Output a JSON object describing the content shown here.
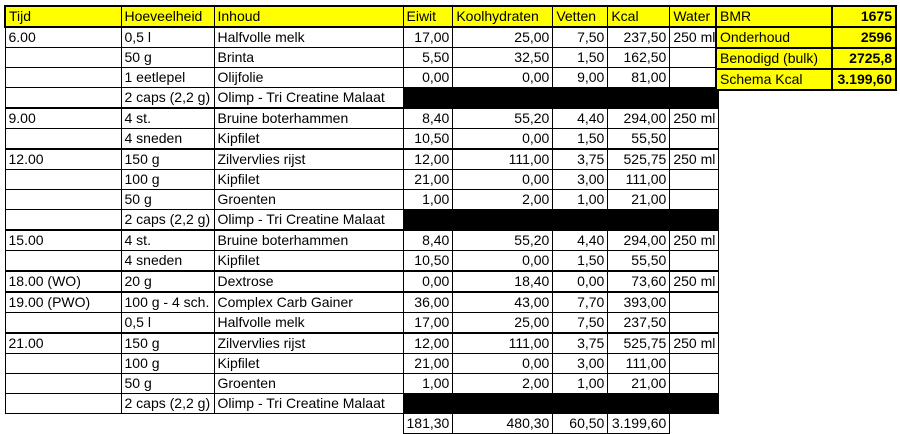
{
  "colors": {
    "header_bg": "#ffff00",
    "grid_line": "#000000",
    "redaction_bar": "#000000",
    "background": "#ffffff",
    "text": "#000000"
  },
  "table": {
    "columns": [
      "Tijd",
      "Hoeveelheid",
      "Inhoud",
      "Eiwit",
      "Koolhydraten",
      "Vetten",
      "Kcal",
      "Water"
    ],
    "rows": [
      {
        "tijd": "6.00",
        "hoeveelheid": "0,5 l",
        "inhoud": "Halfvolle melk",
        "eiwit": "17,00",
        "koolhydraten": "25,00",
        "vetten": "7,50",
        "kcal": "237,50",
        "water": "250 ml",
        "block_start": true
      },
      {
        "hoeveelheid": "50 g",
        "inhoud": "Brinta",
        "eiwit": "5,50",
        "koolhydraten": "32,50",
        "vetten": "1,50",
        "kcal": "162,50"
      },
      {
        "hoeveelheid": "1 eetlepel",
        "inhoud": "Olijfolie",
        "eiwit": "0,00",
        "koolhydraten": "0,00",
        "vetten": "9,00",
        "kcal": "81,00"
      },
      {
        "hoeveelheid": "2 caps (2,2 g)",
        "inhoud": "Olimp - Tri Creatine Malaat",
        "supplement_bar": true
      },
      {
        "tijd": "9.00",
        "hoeveelheid": "4 st.",
        "inhoud": "Bruine boterhammen",
        "eiwit": "8,40",
        "koolhydraten": "55,20",
        "vetten": "4,40",
        "kcal": "294,00",
        "water": "250 ml",
        "block_start": true
      },
      {
        "hoeveelheid": "4 sneden",
        "inhoud": "Kipfilet",
        "eiwit": "10,50",
        "koolhydraten": "0,00",
        "vetten": "1,50",
        "kcal": "55,50"
      },
      {
        "tijd": "12.00",
        "hoeveelheid": "150 g",
        "inhoud": "Zilvervlies rijst",
        "eiwit": "12,00",
        "koolhydraten": "111,00",
        "vetten": "3,75",
        "kcal": "525,75",
        "water": "250 ml",
        "block_start": true
      },
      {
        "hoeveelheid": "100 g",
        "inhoud": "Kipfilet",
        "eiwit": "21,00",
        "koolhydraten": "0,00",
        "vetten": "3,00",
        "kcal": "111,00"
      },
      {
        "hoeveelheid": "50 g",
        "inhoud": "Groenten",
        "eiwit": "1,00",
        "koolhydraten": "2,00",
        "vetten": "1,00",
        "kcal": "21,00"
      },
      {
        "hoeveelheid": "2 caps (2,2 g)",
        "inhoud": "Olimp - Tri Creatine Malaat",
        "supplement_bar": true
      },
      {
        "tijd": "15.00",
        "hoeveelheid": "4 st.",
        "inhoud": "Bruine boterhammen",
        "eiwit": "8,40",
        "koolhydraten": "55,20",
        "vetten": "4,40",
        "kcal": "294,00",
        "water": "250 ml",
        "block_start": true
      },
      {
        "hoeveelheid": "4 sneden",
        "inhoud": "Kipfilet",
        "eiwit": "10,50",
        "koolhydraten": "0,00",
        "vetten": "1,50",
        "kcal": "55,50"
      },
      {
        "tijd": "18.00 (WO)",
        "hoeveelheid": "20 g",
        "inhoud": "Dextrose",
        "eiwit": "0,00",
        "koolhydraten": "18,40",
        "vetten": "0,00",
        "kcal": "73,60",
        "water": "250 ml",
        "block_start": true
      },
      {
        "tijd": "19.00 (PWO)",
        "hoeveelheid": "100 g - 4 sch.",
        "inhoud": "Complex Carb Gainer",
        "eiwit": "36,00",
        "koolhydraten": "43,00",
        "vetten": "7,70",
        "kcal": "393,00",
        "block_start": true
      },
      {
        "hoeveelheid": "0,5 l",
        "inhoud": "Halfvolle melk",
        "eiwit": "17,00",
        "koolhydraten": "25,00",
        "vetten": "7,50",
        "kcal": "237,50"
      },
      {
        "tijd": "21.00",
        "hoeveelheid": "150 g",
        "inhoud": "Zilvervlies rijst",
        "eiwit": "12,00",
        "koolhydraten": "111,00",
        "vetten": "3,75",
        "kcal": "525,75",
        "water": "250 ml",
        "block_start": true
      },
      {
        "hoeveelheid": "100 g",
        "inhoud": "Kipfilet",
        "eiwit": "21,00",
        "koolhydraten": "0,00",
        "vetten": "3,00",
        "kcal": "111,00"
      },
      {
        "hoeveelheid": "50 g",
        "inhoud": "Groenten",
        "eiwit": "1,00",
        "koolhydraten": "2,00",
        "vetten": "1,00",
        "kcal": "21,00"
      },
      {
        "hoeveelheid": "2 caps (2,2 g)",
        "inhoud": "Olimp - Tri Creatine Malaat",
        "supplement_bar": true
      }
    ],
    "totals": {
      "eiwit": "181,30",
      "koolhydraten": "480,30",
      "vetten": "60,50",
      "kcal": "3.199,60"
    }
  },
  "summary": {
    "rows": [
      {
        "label": "BMR",
        "value": "1675"
      },
      {
        "label": "Onderhoud",
        "value": "2596"
      },
      {
        "label": "Benodigd (bulk)",
        "value": "2725,8"
      },
      {
        "label": "Schema Kcal",
        "value": "3.199,60"
      }
    ]
  }
}
